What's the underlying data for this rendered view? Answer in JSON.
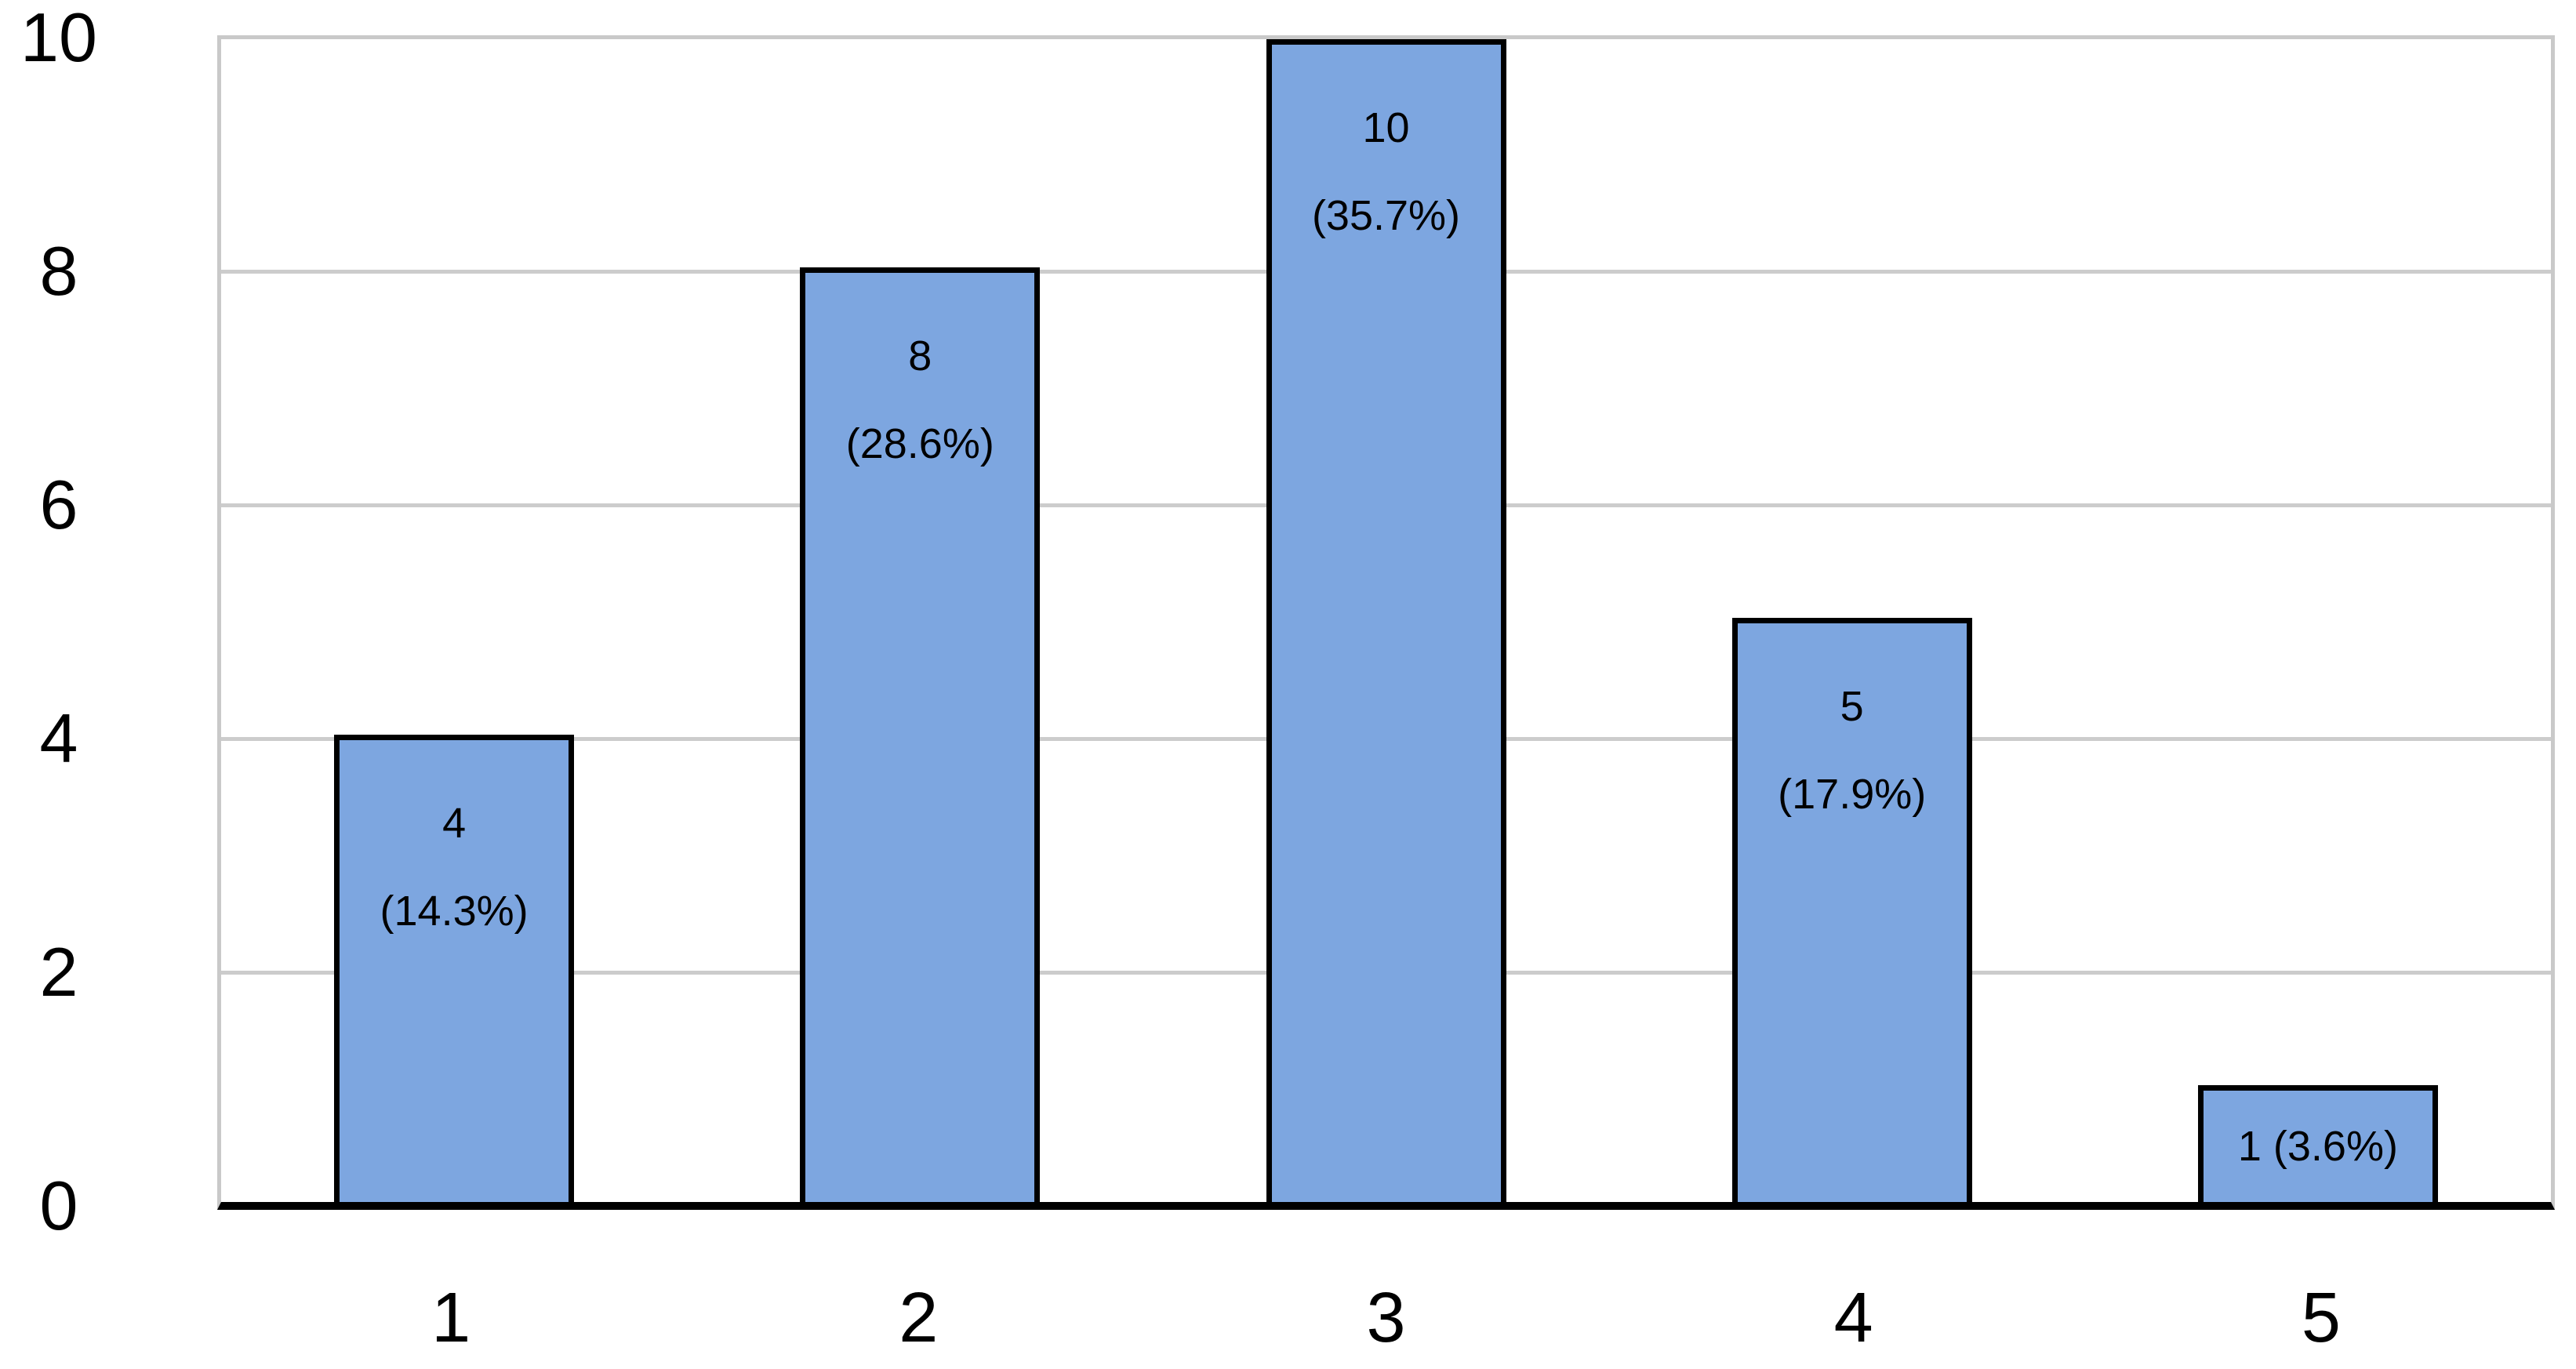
{
  "chart_data": {
    "type": "bar",
    "title": "",
    "xlabel": "",
    "ylabel": "",
    "categories": [
      "1",
      "2",
      "3",
      "4",
      "5"
    ],
    "values": [
      4,
      8,
      10,
      5,
      1
    ],
    "percentages": [
      "14.3%",
      "28.6%",
      "35.7%",
      "17.9%",
      "3.6%"
    ],
    "bar_label_lines": [
      [
        "4",
        "(14.3%)"
      ],
      [
        "8",
        "(28.6%)"
      ],
      [
        "10",
        "(35.7%)"
      ],
      [
        "5",
        "(17.9%)"
      ],
      [
        "1 (3.6%)"
      ]
    ],
    "ylim": [
      0,
      10
    ],
    "yticks": [
      "0",
      "2",
      "4",
      "6",
      "8",
      "10"
    ],
    "grid": "horizontal-on",
    "legend": "none",
    "colors": {
      "bar_fill": "#7da6e0",
      "bar_border": "#000000",
      "gridline": "#cccccc",
      "plot_border": "#c9c9c9",
      "axis_line": "#000000",
      "label_text": "#000000",
      "background": "#ffffff"
    }
  }
}
